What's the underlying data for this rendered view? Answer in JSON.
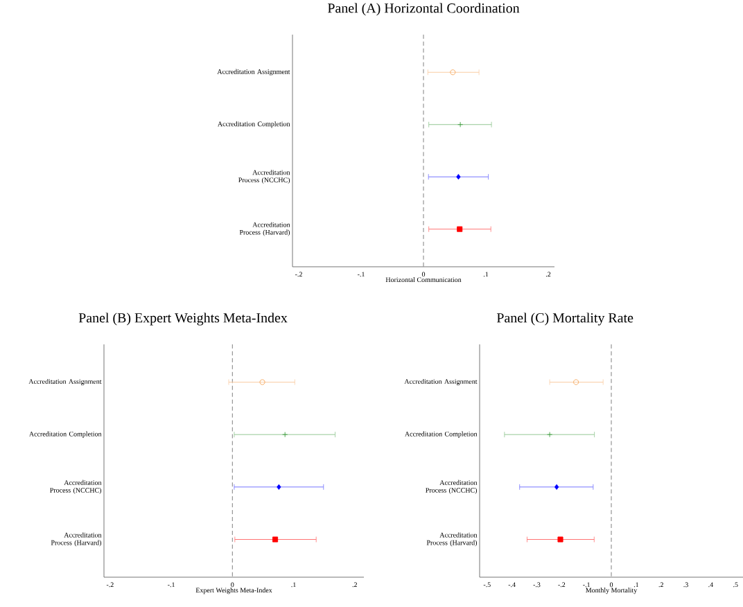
{
  "chart_data": [
    {
      "type": "scatter",
      "orientation": "horizontal",
      "title": "Panel (A) Horizontal Coordination",
      "xlabel": "Horizontal Communication",
      "categories": [
        "Accreditation Assignment",
        "Accreditation Completion",
        "Accreditation Process (NCCHC)",
        "Accreditation Process (Harvard)"
      ],
      "series": [
        {
          "color": "#f5a55a",
          "marker": "circle",
          "values": [
            0.047,
            null,
            null,
            null
          ],
          "errors": [
            [
              0.007,
              0.089
            ],
            null,
            null,
            null
          ]
        },
        {
          "color": "#3a9a3a",
          "marker": "cross",
          "values": [
            null,
            0.059,
            null,
            null
          ],
          "errors": [
            null,
            [
              0.0085,
              0.109
            ],
            null,
            null
          ]
        },
        {
          "color": "#0000ff",
          "marker": "diamond",
          "values": [
            null,
            null,
            0.056,
            null
          ],
          "errors": [
            null,
            null,
            [
              0.008,
              0.104
            ],
            null
          ]
        },
        {
          "color": "#ff0000",
          "marker": "square",
          "values": [
            null,
            null,
            null,
            0.058
          ],
          "errors": [
            null,
            null,
            null,
            [
              0.0085,
              0.108
            ]
          ]
        }
      ],
      "xlim": [
        -0.21,
        0.21
      ],
      "xticks": [
        {
          "value": -0.2,
          "label": "-.2"
        },
        {
          "value": -0.1,
          "label": "-.1"
        },
        0,
        {
          "value": 0.1,
          "label": ".1"
        },
        {
          "value": 0.2,
          "label": ".2"
        }
      ],
      "ref_lines": [
        {
          "axis": "x",
          "value": 0,
          "color": "#808080",
          "line_style": "dashed"
        }
      ]
    },
    {
      "type": "scatter",
      "orientation": "horizontal",
      "title": "Panel (B) Expert Weights Meta-Index",
      "xlabel": "Expert Weights Meta-Index",
      "categories": [
        "Accreditation Assignment",
        "Accreditation Completion",
        "Accreditation Process (NCCHC)",
        "Accreditation Process (Harvard)"
      ],
      "series": [
        {
          "color": "#f5a55a",
          "marker": "circle",
          "values": [
            0.049,
            null,
            null,
            null
          ],
          "errors": [
            [
              -0.006,
              0.102
            ],
            null,
            null,
            null
          ]
        },
        {
          "color": "#3a9a3a",
          "marker": "cross",
          "values": [
            null,
            0.086,
            null,
            null
          ],
          "errors": [
            null,
            [
              0.003,
              0.168
            ],
            null,
            null
          ]
        },
        {
          "color": "#0000ff",
          "marker": "diamond",
          "values": [
            null,
            null,
            0.076,
            null
          ],
          "errors": [
            null,
            null,
            [
              0.003,
              0.149
            ],
            null
          ]
        },
        {
          "color": "#ff0000",
          "marker": "square",
          "values": [
            null,
            null,
            null,
            0.07
          ],
          "errors": [
            null,
            null,
            null,
            [
              0.004,
              0.137
            ]
          ]
        }
      ],
      "xlim": [
        -0.21,
        0.215
      ],
      "xticks": [
        {
          "value": -0.2,
          "label": "-.2"
        },
        {
          "value": -0.1,
          "label": "-.1"
        },
        0,
        {
          "value": 0.1,
          "label": ".1"
        },
        {
          "value": 0.2,
          "label": ".2"
        }
      ],
      "ref_lines": [
        {
          "axis": "x",
          "value": 0,
          "color": "#808080",
          "line_style": "dashed"
        }
      ]
    },
    {
      "type": "scatter",
      "orientation": "horizontal",
      "title": "Panel (C) Mortality Rate",
      "xlabel": "Monthly Mortality",
      "categories": [
        "Accreditation Assignment",
        "Accreditation Completion",
        "Accreditation Process (NCCHC)",
        "Accreditation Process (Harvard)"
      ],
      "series": [
        {
          "color": "#f5a55a",
          "marker": "circle",
          "values": [
            -0.142,
            null,
            null,
            null
          ],
          "errors": [
            [
              -0.248,
              -0.033
            ],
            null,
            null,
            null
          ]
        },
        {
          "color": "#3a9a3a",
          "marker": "cross",
          "values": [
            null,
            -0.248,
            null,
            null
          ],
          "errors": [
            null,
            [
              -0.43,
              -0.068
            ],
            null,
            null
          ]
        },
        {
          "color": "#0000ff",
          "marker": "diamond",
          "values": [
            null,
            null,
            -0.22,
            null
          ],
          "errors": [
            null,
            null,
            [
              -0.369,
              -0.073
            ],
            null
          ]
        },
        {
          "color": "#ff0000",
          "marker": "square",
          "values": [
            null,
            null,
            null,
            -0.205
          ],
          "errors": [
            null,
            null,
            null,
            [
              -0.339,
              -0.069
            ]
          ]
        }
      ],
      "xlim": [
        -0.53,
        0.53
      ],
      "xticks": [
        {
          "value": -0.5,
          "label": "-.5"
        },
        {
          "value": -0.4,
          "label": "-.4"
        },
        {
          "value": -0.3,
          "label": "-.3"
        },
        {
          "value": -0.2,
          "label": "-.2"
        },
        {
          "value": -0.1,
          "label": "-.1"
        },
        0,
        {
          "value": 0.1,
          "label": ".1"
        },
        {
          "value": 0.2,
          "label": ".2"
        },
        {
          "value": 0.3,
          "label": ".3"
        },
        {
          "value": 0.4,
          "label": ".4"
        },
        {
          "value": 0.5,
          "label": ".5"
        }
      ],
      "ref_lines": [
        {
          "axis": "x",
          "value": 0,
          "color": "#808080",
          "line_style": "dashed"
        }
      ]
    }
  ]
}
